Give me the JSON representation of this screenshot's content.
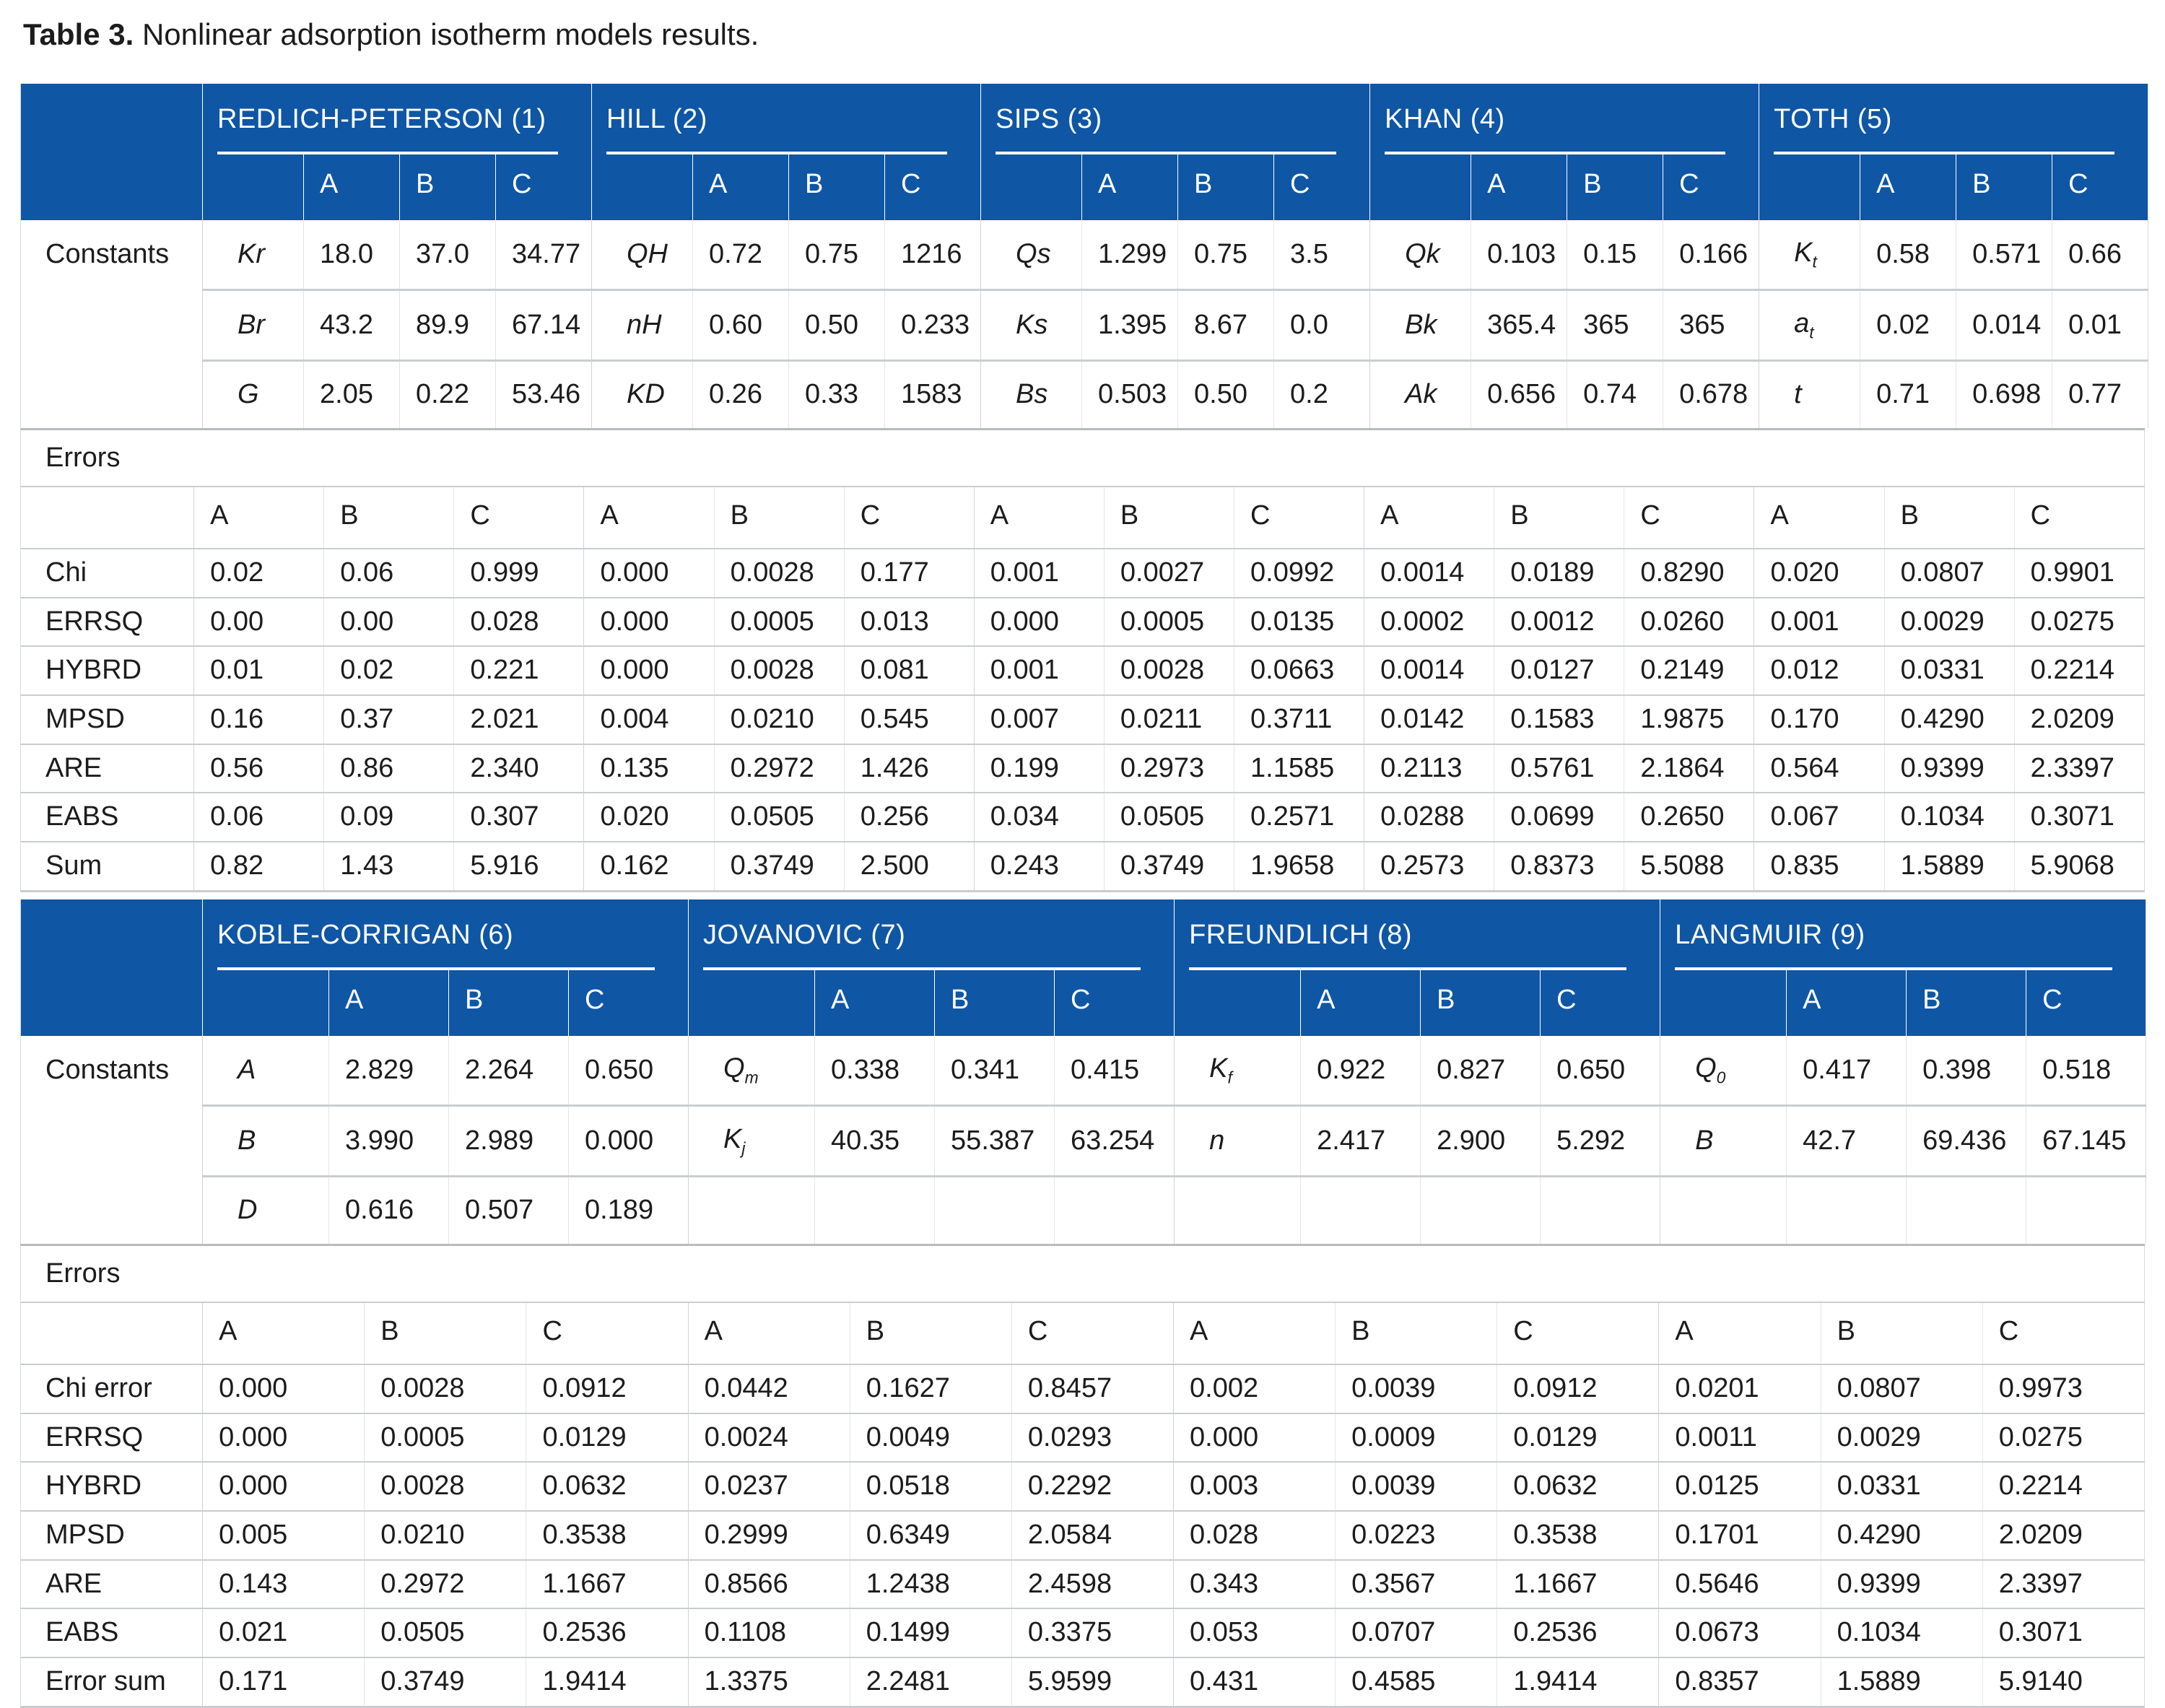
{
  "caption": {
    "number": "Table 3.",
    "text": "Nonlinear adsorption isotherm models results."
  },
  "colors": {
    "header_blue": "#0f56a5",
    "row_line": "#c9cdd1",
    "text": "#1c1c1e"
  },
  "table1": {
    "models": [
      {
        "name": "REDLICH-PETERSON (1)"
      },
      {
        "name": "HILL (2)"
      },
      {
        "name": "SIPS (3)"
      },
      {
        "name": "KHAN (4)"
      },
      {
        "name": "TOTH (5)"
      }
    ],
    "abc": [
      "A",
      "B",
      "C"
    ],
    "constants_label": "Constants",
    "constants": [
      {
        "cells": [
          {
            "p": "Kr",
            "sub": "",
            "v": [
              "18.0",
              "37.0",
              "34.77"
            ]
          },
          {
            "p": "QH",
            "sub": "",
            "v": [
              "0.72",
              "0.75",
              "1216"
            ]
          },
          {
            "p": "Qs",
            "sub": "",
            "v": [
              "1.299",
              "0.75",
              "3.5"
            ]
          },
          {
            "p": "Qk",
            "sub": "",
            "v": [
              "0.103",
              "0.15",
              "0.166"
            ]
          },
          {
            "p": "K",
            "sub": "t",
            "v": [
              "0.58",
              "0.571",
              "0.66"
            ]
          }
        ]
      },
      {
        "cells": [
          {
            "p": "Br",
            "sub": "",
            "v": [
              "43.2",
              "89.9",
              "67.14"
            ]
          },
          {
            "p": "nH",
            "sub": "",
            "v": [
              "0.60",
              "0.50",
              "0.233"
            ]
          },
          {
            "p": "Ks",
            "sub": "",
            "v": [
              "1.395",
              "8.67",
              "0.0"
            ]
          },
          {
            "p": "Bk",
            "sub": "",
            "v": [
              "365.4",
              "365",
              "365"
            ]
          },
          {
            "p": "a",
            "sub": "t",
            "v": [
              "0.02",
              "0.014",
              "0.01"
            ]
          }
        ]
      },
      {
        "cells": [
          {
            "p": "G",
            "sub": "",
            "v": [
              "2.05",
              "0.22",
              "53.46"
            ]
          },
          {
            "p": "KD",
            "sub": "",
            "v": [
              "0.26",
              "0.33",
              "1583"
            ]
          },
          {
            "p": "Bs",
            "sub": "",
            "v": [
              "0.503",
              "0.50",
              "0.2"
            ]
          },
          {
            "p": "Ak",
            "sub": "",
            "v": [
              "0.656",
              "0.74",
              "0.678"
            ]
          },
          {
            "p": "t",
            "sub": "",
            "v": [
              "0.71",
              "0.698",
              "0.77"
            ]
          }
        ]
      }
    ],
    "errors_label": "Errors",
    "error_header": [
      "A",
      "B",
      "C",
      "A",
      "B",
      "C",
      "A",
      "B",
      "C",
      "A",
      "B",
      "C",
      "A",
      "B",
      "C"
    ],
    "error_rows": [
      {
        "label": "Chi",
        "v": [
          "0.02",
          "0.06",
          "0.999",
          "0.000",
          "0.0028",
          "0.177",
          "0.001",
          "0.0027",
          "0.0992",
          "0.0014",
          "0.0189",
          "0.8290",
          "0.020",
          "0.0807",
          "0.9901"
        ]
      },
      {
        "label": "ERRSQ",
        "v": [
          "0.00",
          "0.00",
          "0.028",
          "0.000",
          "0.0005",
          "0.013",
          "0.000",
          "0.0005",
          "0.0135",
          "0.0002",
          "0.0012",
          "0.0260",
          "0.001",
          "0.0029",
          "0.0275"
        ]
      },
      {
        "label": "HYBRD",
        "v": [
          "0.01",
          "0.02",
          "0.221",
          "0.000",
          "0.0028",
          "0.081",
          "0.001",
          "0.0028",
          "0.0663",
          "0.0014",
          "0.0127",
          "0.2149",
          "0.012",
          "0.0331",
          "0.2214"
        ]
      },
      {
        "label": "MPSD",
        "v": [
          "0.16",
          "0.37",
          "2.021",
          "0.004",
          "0.0210",
          "0.545",
          "0.007",
          "0.0211",
          "0.3711",
          "0.0142",
          "0.1583",
          "1.9875",
          "0.170",
          "0.4290",
          "2.0209"
        ]
      },
      {
        "label": "ARE",
        "v": [
          "0.56",
          "0.86",
          "2.340",
          "0.135",
          "0.2972",
          "1.426",
          "0.199",
          "0.2973",
          "1.1585",
          "0.2113",
          "0.5761",
          "2.1864",
          "0.564",
          "0.9399",
          "2.3397"
        ]
      },
      {
        "label": "EABS",
        "v": [
          "0.06",
          "0.09",
          "0.307",
          "0.020",
          "0.0505",
          "0.256",
          "0.034",
          "0.0505",
          "0.2571",
          "0.0288",
          "0.0699",
          "0.2650",
          "0.067",
          "0.1034",
          "0.3071"
        ]
      },
      {
        "label": "Sum",
        "v": [
          "0.82",
          "1.43",
          "5.916",
          "0.162",
          "0.3749",
          "2.500",
          "0.243",
          "0.3749",
          "1.9658",
          "0.2573",
          "0.8373",
          "5.5088",
          "0.835",
          "1.5889",
          "5.9068"
        ]
      }
    ]
  },
  "table2": {
    "models": [
      {
        "name": "KOBLE-CORRIGAN (6)"
      },
      {
        "name": "JOVANOVIC (7)"
      },
      {
        "name": "FREUNDLICH (8)"
      },
      {
        "name": "LANGMUIR (9)"
      }
    ],
    "abc": [
      "A",
      "B",
      "C"
    ],
    "constants_label": "Constants",
    "constants": [
      {
        "cells": [
          {
            "p": "A",
            "sub": "",
            "v": [
              "2.829",
              "2.264",
              "0.650"
            ]
          },
          {
            "p": "Q",
            "sub": "m",
            "v": [
              "0.338",
              "0.341",
              "0.415"
            ]
          },
          {
            "p": "K",
            "sub": "f",
            "v": [
              "0.922",
              "0.827",
              "0.650"
            ]
          },
          {
            "p": "Q",
            "sub": "0",
            "v": [
              "0.417",
              "0.398",
              "0.518"
            ]
          }
        ]
      },
      {
        "cells": [
          {
            "p": "B",
            "sub": "",
            "v": [
              "3.990",
              "2.989",
              "0.000"
            ]
          },
          {
            "p": "K",
            "sub": "j",
            "v": [
              "40.35",
              "55.387",
              "63.254"
            ]
          },
          {
            "p": "n",
            "sub": "",
            "v": [
              "2.417",
              "2.900",
              "5.292"
            ]
          },
          {
            "p": "B",
            "sub": "",
            "v": [
              "42.7",
              "69.436",
              "67.145"
            ]
          }
        ]
      },
      {
        "cells": [
          {
            "p": "D",
            "sub": "",
            "v": [
              "0.616",
              "0.507",
              "0.189"
            ]
          },
          null,
          null,
          null
        ]
      }
    ],
    "errors_label": "Errors",
    "error_header": [
      "A",
      "B",
      "C",
      "A",
      "B",
      "C",
      "A",
      "B",
      "C",
      "A",
      "B",
      "C"
    ],
    "error_rows": [
      {
        "label": "Chi error",
        "v": [
          "0.000",
          "0.0028",
          "0.0912",
          "0.0442",
          "0.1627",
          "0.8457",
          "0.002",
          "0.0039",
          "0.0912",
          "0.0201",
          "0.0807",
          "0.9973"
        ]
      },
      {
        "label": "ERRSQ",
        "v": [
          "0.000",
          "0.0005",
          "0.0129",
          "0.0024",
          "0.0049",
          "0.0293",
          "0.000",
          "0.0009",
          "0.0129",
          "0.0011",
          "0.0029",
          "0.0275"
        ]
      },
      {
        "label": "HYBRD",
        "v": [
          "0.000",
          "0.0028",
          "0.0632",
          "0.0237",
          "0.0518",
          "0.2292",
          "0.003",
          "0.0039",
          "0.0632",
          "0.0125",
          "0.0331",
          "0.2214"
        ]
      },
      {
        "label": "MPSD",
        "v": [
          "0.005",
          "0.0210",
          "0.3538",
          "0.2999",
          "0.6349",
          "2.0584",
          "0.028",
          "0.0223",
          "0.3538",
          "0.1701",
          "0.4290",
          "2.0209"
        ]
      },
      {
        "label": "ARE",
        "v": [
          "0.143",
          "0.2972",
          "1.1667",
          "0.8566",
          "1.2438",
          "2.4598",
          "0.343",
          "0.3567",
          "1.1667",
          "0.5646",
          "0.9399",
          "2.3397"
        ]
      },
      {
        "label": "EABS",
        "v": [
          "0.021",
          "0.0505",
          "0.2536",
          "0.1108",
          "0.1499",
          "0.3375",
          "0.053",
          "0.0707",
          "0.2536",
          "0.0673",
          "0.1034",
          "0.3071"
        ]
      },
      {
        "label": "Error sum",
        "v": [
          "0.171",
          "0.3749",
          "1.9414",
          "1.3375",
          "2.2481",
          "5.9599",
          "0.431",
          "0.4585",
          "1.9414",
          "0.8357",
          "1.5889",
          "5.9140"
        ]
      }
    ]
  }
}
